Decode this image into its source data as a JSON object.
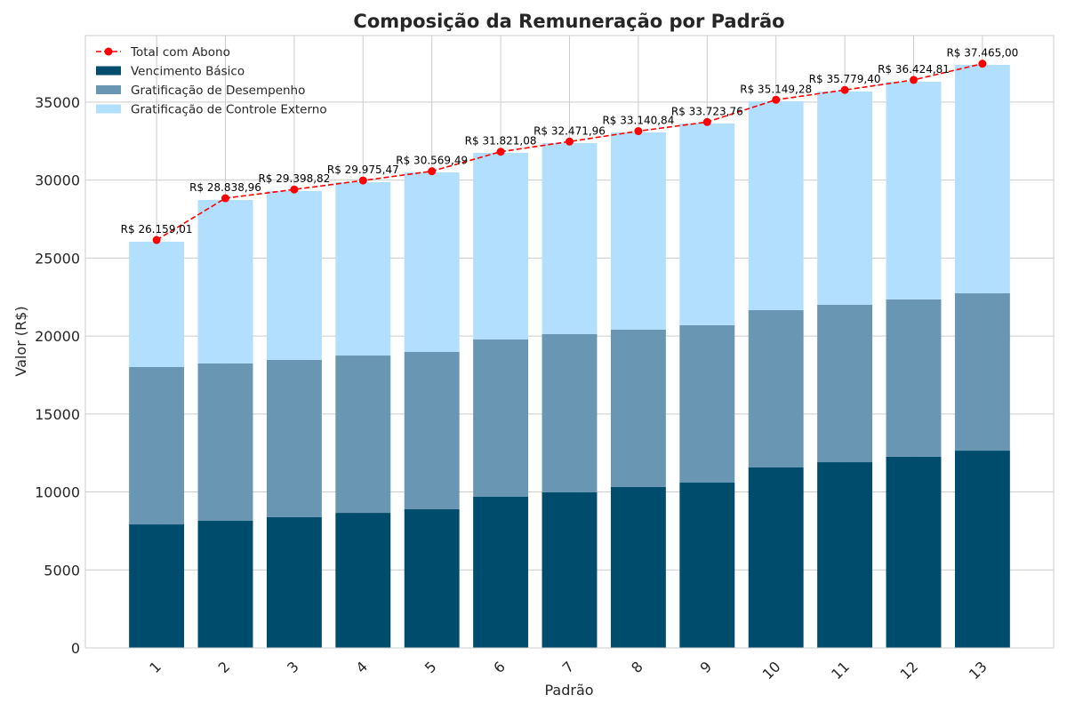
{
  "chart_data": {
    "type": "bar",
    "stacked": true,
    "title": "Composição da Remuneração por Padrão",
    "xlabel": "Padrão",
    "ylabel": "Valor (R$)",
    "categories": [
      "1",
      "2",
      "3",
      "4",
      "5",
      "6",
      "7",
      "8",
      "9",
      "10",
      "11",
      "12",
      "13"
    ],
    "ylim": [
      0,
      39270
    ],
    "yticks": [
      0,
      5000,
      10000,
      15000,
      20000,
      25000,
      30000,
      35000
    ],
    "grid": true,
    "legend_placement": "top-left",
    "series": [
      {
        "name": "Vencimento Básico",
        "color": "#004c6d",
        "values": [
          7920,
          8150,
          8380,
          8660,
          8890,
          9690,
          9980,
          10320,
          10600,
          11570,
          11910,
          12260,
          12650
        ]
      },
      {
        "name": "Gratificação de Desempenho",
        "color": "#6996b3",
        "values": [
          10090,
          10090,
          10090,
          10090,
          10090,
          10090,
          10140,
          10090,
          10090,
          10090,
          10090,
          10090,
          10090
        ]
      },
      {
        "name": "Gratificação de Controle Externo",
        "color": "#b3dfff",
        "values": [
          8040,
          10490,
          10830,
          11120,
          11520,
          11970,
          12260,
          12650,
          12940,
          13400,
          13680,
          13960,
          14650
        ]
      }
    ],
    "line_series": {
      "name": "Total com Abono",
      "color": "#ff0000",
      "style": "dashed",
      "marker": "circle",
      "values": [
        26159.01,
        28838.96,
        29398.82,
        29975.47,
        30569.49,
        31821.08,
        32471.96,
        33140.84,
        33723.76,
        35149.28,
        35779.4,
        36424.81,
        37465.0
      ],
      "labels": [
        "R$ 26.159,01",
        "R$ 28.838,96",
        "R$ 29.398,82",
        "R$ 29.975,47",
        "R$ 30.569,49",
        "R$ 31.821,08",
        "R$ 32.471,96",
        "R$ 33.140,84",
        "R$ 33.723,76",
        "R$ 35.149,28",
        "R$ 35.779,40",
        "R$ 36.424,81",
        "R$ 37.465,00"
      ]
    }
  }
}
